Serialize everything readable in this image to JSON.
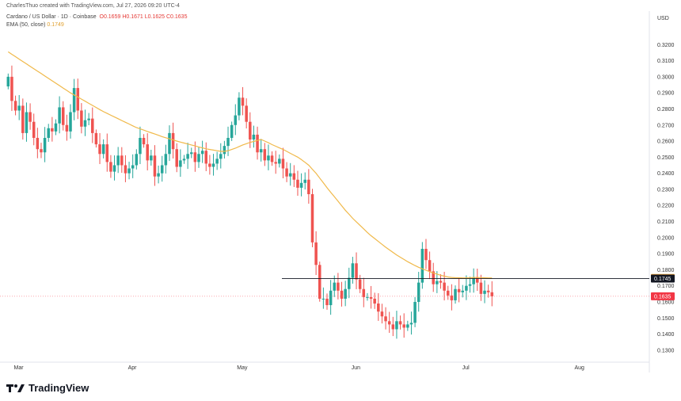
{
  "header": {
    "text": "CharlesThuo created with TradingView.com, Jul 27, 2026 09:20 UTC-4"
  },
  "legend": {
    "symbol": "Cardano / US Dollar · 1D · Coinbase",
    "ohlc": {
      "o": "O0.1659",
      "h": "H0.1671",
      "l": "L0.1625",
      "c": "C0.1635"
    },
    "ema": "EMA (50, close)",
    "ema_value": "0.1749"
  },
  "axis": {
    "currency": "USD"
  },
  "brand": {
    "name": "TradingView"
  },
  "colors": {
    "up": "#26a69a",
    "down": "#ef5350",
    "ema": "#f0b94a",
    "last_price": "#f23645",
    "ema_tag": "#f7a531",
    "level_tag": "#131722"
  },
  "chart_data": {
    "type": "candlestick",
    "ylim": [
      0.125,
      0.33
    ],
    "y_ticks": [
      "0.3200",
      "0.3100",
      "0.3000",
      "0.2900",
      "0.2800",
      "0.2700",
      "0.2600",
      "0.2500",
      "0.2400",
      "0.2300",
      "0.2200",
      "0.2100",
      "0.2000",
      "0.1900",
      "0.1800",
      "0.1700",
      "0.1600",
      "0.1500",
      "0.1400",
      "0.1300"
    ],
    "x_ticks": [
      {
        "label": "Mar",
        "index": 2
      },
      {
        "label": "Apr",
        "index": 33
      },
      {
        "label": "May",
        "index": 63
      },
      {
        "label": "Jun",
        "index": 94
      },
      {
        "label": "Jul",
        "index": 124
      },
      {
        "label": "Aug",
        "index": 155
      }
    ],
    "total_slots": 175,
    "horizontal_level": "0.1745",
    "ema_label": "0.1749",
    "last_price": "0.1635",
    "grid": false,
    "closes": [
      0.3,
      0.285,
      0.279,
      0.282,
      0.265,
      0.278,
      0.272,
      0.262,
      0.255,
      0.253,
      0.262,
      0.268,
      0.266,
      0.271,
      0.281,
      0.27,
      0.266,
      0.278,
      0.293,
      0.279,
      0.269,
      0.273,
      0.274,
      0.265,
      0.258,
      0.252,
      0.258,
      0.247,
      0.241,
      0.245,
      0.251,
      0.245,
      0.24,
      0.243,
      0.245,
      0.252,
      0.262,
      0.258,
      0.248,
      0.251,
      0.238,
      0.24,
      0.245,
      0.252,
      0.265,
      0.255,
      0.244,
      0.248,
      0.249,
      0.252,
      0.253,
      0.247,
      0.252,
      0.254,
      0.246,
      0.244,
      0.246,
      0.249,
      0.252,
      0.257,
      0.262,
      0.27,
      0.276,
      0.287,
      0.282,
      0.272,
      0.261,
      0.264,
      0.253,
      0.255,
      0.248,
      0.251,
      0.247,
      0.246,
      0.249,
      0.243,
      0.238,
      0.24,
      0.236,
      0.231,
      0.234,
      0.236,
      0.227,
      0.197,
      0.183,
      0.162,
      0.162,
      0.158,
      0.167,
      0.172,
      0.167,
      0.162,
      0.168,
      0.175,
      0.184,
      0.174,
      0.168,
      0.163,
      0.163,
      0.162,
      0.159,
      0.154,
      0.151,
      0.148,
      0.146,
      0.143,
      0.148,
      0.146,
      0.144,
      0.146,
      0.147,
      0.16,
      0.172,
      0.193,
      0.186,
      0.179,
      0.171,
      0.173,
      0.172,
      0.167,
      0.164,
      0.161,
      0.168,
      0.166,
      0.167,
      0.17,
      0.171,
      0.175,
      0.172,
      0.165,
      0.167,
      0.166,
      0.1635
    ],
    "ema": [
      0.3155,
      0.314,
      0.3125,
      0.311,
      0.3095,
      0.308,
      0.3065,
      0.305,
      0.3035,
      0.302,
      0.3005,
      0.299,
      0.2975,
      0.296,
      0.2945,
      0.293,
      0.2915,
      0.29,
      0.2887,
      0.2874,
      0.2861,
      0.2848,
      0.2835,
      0.2822,
      0.2809,
      0.2796,
      0.2783,
      0.2772,
      0.2761,
      0.275,
      0.2739,
      0.2728,
      0.2717,
      0.2706,
      0.2695,
      0.2684,
      0.2676,
      0.2668,
      0.266,
      0.2652,
      0.2644,
      0.2636,
      0.2628,
      0.2621,
      0.2614,
      0.2607,
      0.26,
      0.2594,
      0.2588,
      0.2582,
      0.2576,
      0.257,
      0.2564,
      0.2558,
      0.2552,
      0.2548,
      0.2544,
      0.254,
      0.2536,
      0.2536,
      0.254,
      0.2548,
      0.2556,
      0.2566,
      0.2576,
      0.2584,
      0.2592,
      0.2598,
      0.2604,
      0.261,
      0.26,
      0.259,
      0.2578,
      0.2568,
      0.2558,
      0.2548,
      0.2536,
      0.2524,
      0.2512,
      0.25,
      0.2485,
      0.2468,
      0.245,
      0.2425,
      0.24,
      0.237,
      0.234,
      0.231,
      0.2282,
      0.2254,
      0.2226,
      0.2198,
      0.217,
      0.2145,
      0.212,
      0.2098,
      0.2076,
      0.2054,
      0.2032,
      0.2012,
      0.1994,
      0.1976,
      0.1958,
      0.194,
      0.1924,
      0.1908,
      0.1892,
      0.1878,
      0.1864,
      0.185,
      0.1838,
      0.1826,
      0.1815,
      0.1806,
      0.1797,
      0.1788,
      0.178,
      0.1773,
      0.1766,
      0.176,
      0.1755,
      0.1752,
      0.175,
      0.175,
      0.1749,
      0.1749,
      0.175,
      0.1752,
      0.1752,
      0.1751,
      0.175,
      0.1749,
      0.1749
    ]
  }
}
